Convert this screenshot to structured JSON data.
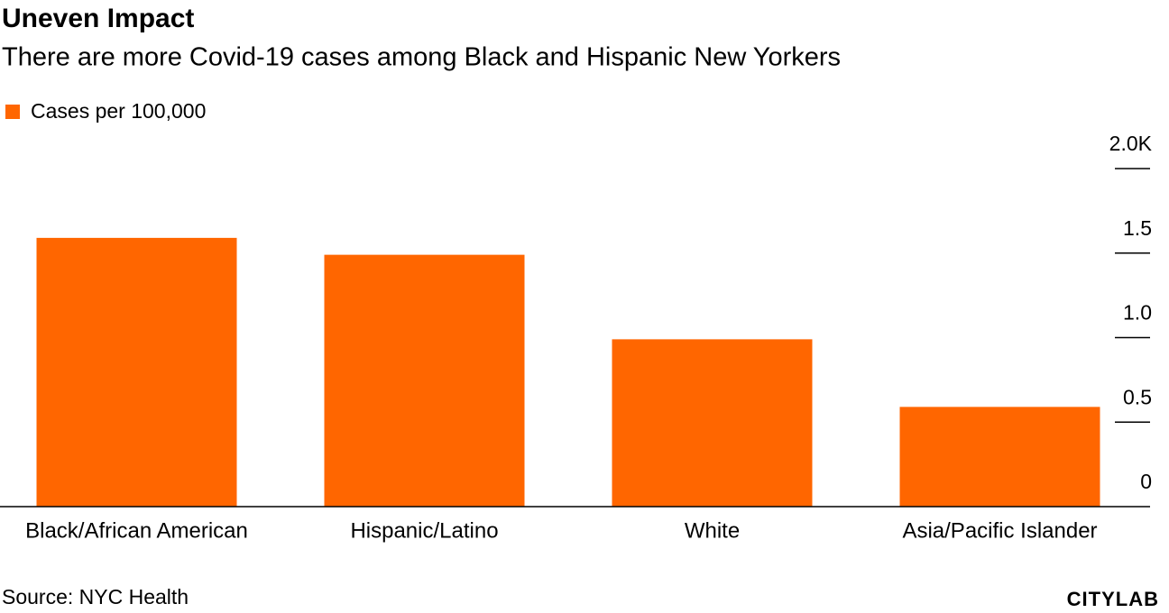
{
  "chart_data": {
    "type": "bar",
    "title": "Uneven Impact",
    "subtitle": "There are more Covid-19 cases among Black and Hispanic New Yorkers",
    "categories": [
      "Black/African American",
      "Hispanic/Latino",
      "White",
      "Asia/Pacific Islander"
    ],
    "series": [
      {
        "name": "Cases per 100,000",
        "color": "#ff6600",
        "values": [
          1.59,
          1.49,
          0.99,
          0.59
        ]
      }
    ],
    "ylim": [
      0,
      2
    ],
    "yticks": [
      0,
      0.5,
      {
        "value": 1,
        "label": "1.0"
      },
      1.5,
      {
        "value": 2,
        "label": "2.0K"
      }
    ],
    "source": "Source: NYC Health",
    "logo": "CITYLAB"
  }
}
